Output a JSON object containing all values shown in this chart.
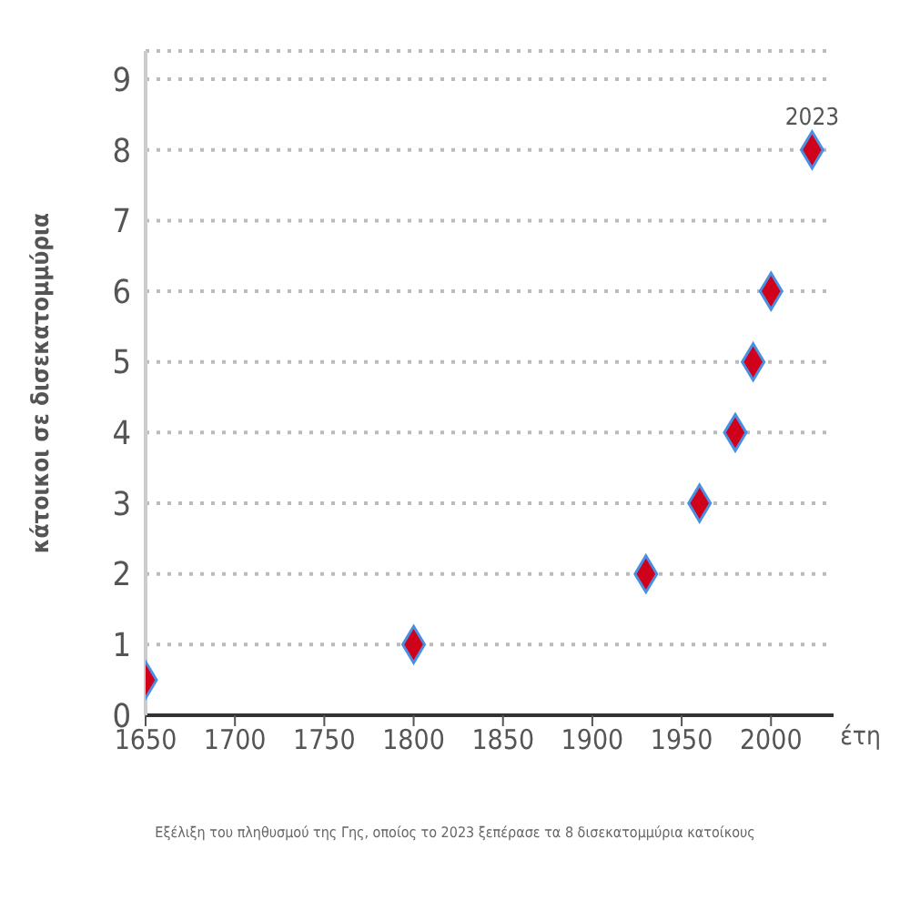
{
  "chart_data": {
    "type": "scatter",
    "xlabel": "έτη",
    "ylabel": "κάτοικοι σε δισεκατομμύρια",
    "x": [
      1650,
      1800,
      1930,
      1960,
      1980,
      1990,
      2000,
      2023
    ],
    "values": [
      0.5,
      1,
      2,
      3,
      4,
      5,
      6,
      8
    ],
    "color": "#d0021b",
    "marker": "diamond",
    "grid": "y",
    "xlim": [
      1650,
      2035
    ],
    "xticks": [
      1650,
      1700,
      1750,
      1800,
      1850,
      1900,
      1950,
      2000
    ],
    "ylim": [
      0,
      9.4
    ],
    "yticks": [
      0,
      1,
      2,
      3,
      4,
      5,
      6,
      7,
      8,
      9
    ],
    "annotations": [
      {
        "text": "2023",
        "x": 2023,
        "y": 8
      },
      "Εξέλιξη του πληθυσμού της Γης, οποίος το 2023 ξεπέρασε τα 8 δισεκατομμύρια κατοίκους"
    ]
  }
}
